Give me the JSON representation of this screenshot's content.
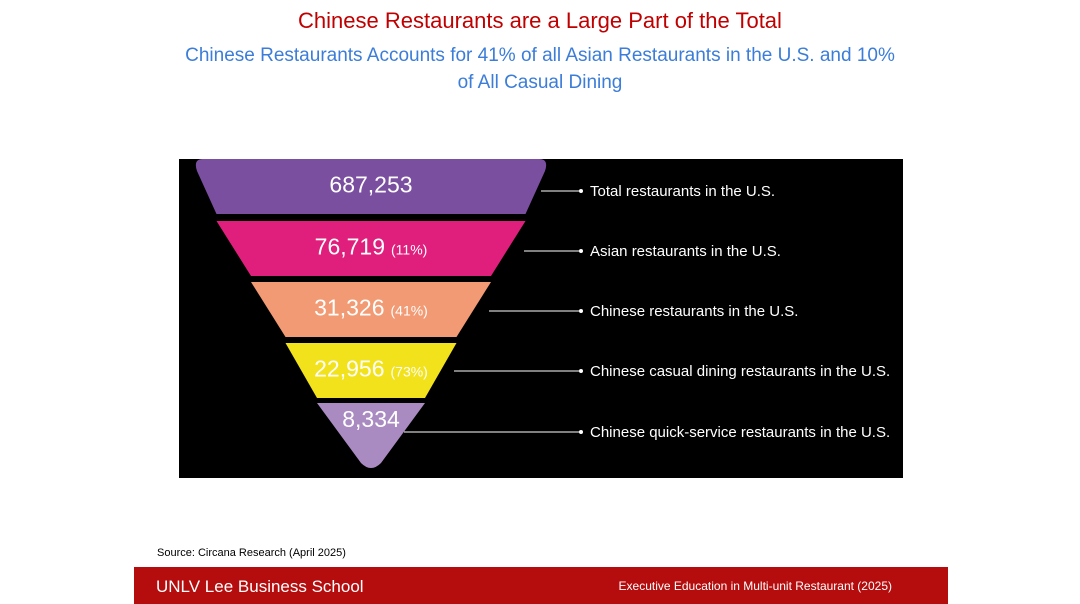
{
  "title": "Chinese Restaurants are a Large Part of the Total",
  "subtitle": "Chinese Restaurants Accounts for 41% of all Asian Restaurants in the U.S. and 10% of All Casual Dining",
  "chart_data": {
    "type": "funnel",
    "levels": [
      {
        "value": "687,253",
        "percent": "",
        "label": "Total restaurants in the U.S.",
        "color": "#7b4fa0"
      },
      {
        "value": "76,719",
        "percent": "(11%)",
        "label": "Asian restaurants in the U.S.",
        "color": "#e01f7c"
      },
      {
        "value": "31,326",
        "percent": "(41%)",
        "label": "Chinese restaurants in the U.S.",
        "color": "#f19a73"
      },
      {
        "value": "22,956",
        "percent": "(73%)",
        "label": "Chinese casual dining restaurants in the U.S.",
        "color": "#f2e21c"
      },
      {
        "value": "8,334",
        "percent": "",
        "label": "Chinese quick-service restaurants in the U.S.",
        "color": "#a98bc2"
      }
    ],
    "background": "#000000"
  },
  "source": "Source: Circana Research (April 2025)",
  "footer": {
    "left": "UNLV Lee Business School",
    "right": "Executive Education in Multi-unit Restaurant (2025)"
  }
}
